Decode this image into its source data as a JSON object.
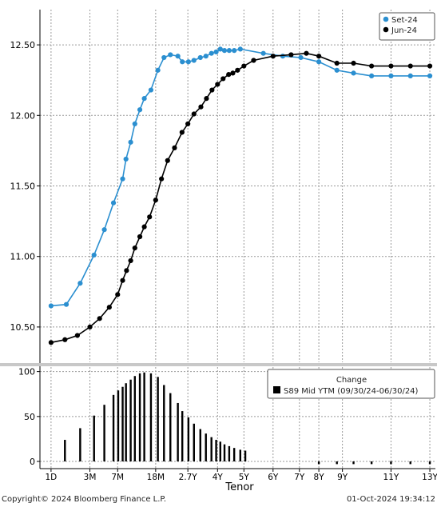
{
  "top_chart": {
    "type": "line",
    "yticks": [
      "12.50",
      "12.00",
      "11.50",
      "11.00",
      "10.50"
    ],
    "ylim": [
      10.25,
      12.75
    ],
    "legend_position": "top-right",
    "series": [
      {
        "name": "Set-24",
        "color": "#2b8fd0",
        "points": [
          [
            1,
            10.65
          ],
          [
            1.55,
            10.66
          ],
          [
            2.05,
            10.81
          ],
          [
            2.55,
            11.01
          ],
          [
            2.92,
            11.19
          ],
          [
            3.25,
            11.38
          ],
          [
            3.58,
            11.55
          ],
          [
            3.7,
            11.69
          ],
          [
            3.87,
            11.81
          ],
          [
            4.02,
            11.94
          ],
          [
            4.2,
            12.04
          ],
          [
            4.36,
            12.12
          ],
          [
            4.6,
            12.18
          ],
          [
            4.85,
            12.32
          ],
          [
            5.07,
            12.41
          ],
          [
            5.3,
            12.43
          ],
          [
            5.57,
            12.42
          ],
          [
            5.73,
            12.38
          ],
          [
            5.95,
            12.38
          ],
          [
            6.15,
            12.39
          ],
          [
            6.38,
            12.41
          ],
          [
            6.58,
            12.42
          ],
          [
            6.78,
            12.44
          ],
          [
            6.95,
            12.45
          ],
          [
            7.1,
            12.47
          ],
          [
            7.25,
            12.46
          ],
          [
            7.42,
            12.46
          ],
          [
            7.6,
            12.46
          ],
          [
            7.82,
            12.47
          ],
          [
            8.65,
            12.44
          ],
          [
            9.35,
            12.42
          ],
          [
            10.0,
            12.41
          ],
          [
            10.65,
            12.38
          ],
          [
            11.3,
            12.32
          ],
          [
            11.9,
            12.3
          ],
          [
            12.55,
            12.28
          ],
          [
            13.25,
            12.28
          ],
          [
            13.95,
            12.28
          ],
          [
            14.65,
            12.28
          ]
        ]
      },
      {
        "name": "Jun-24",
        "color": "#000000",
        "points": [
          [
            1,
            10.39
          ],
          [
            1.5,
            10.41
          ],
          [
            1.95,
            10.44
          ],
          [
            2.4,
            10.5
          ],
          [
            2.75,
            10.56
          ],
          [
            3.1,
            10.64
          ],
          [
            3.4,
            10.73
          ],
          [
            3.58,
            10.83
          ],
          [
            3.72,
            10.9
          ],
          [
            3.87,
            10.97
          ],
          [
            4.02,
            11.06
          ],
          [
            4.2,
            11.14
          ],
          [
            4.36,
            11.21
          ],
          [
            4.55,
            11.28
          ],
          [
            4.77,
            11.4
          ],
          [
            4.98,
            11.55
          ],
          [
            5.2,
            11.68
          ],
          [
            5.45,
            11.77
          ],
          [
            5.72,
            11.88
          ],
          [
            5.93,
            11.94
          ],
          [
            6.15,
            12.01
          ],
          [
            6.4,
            12.06
          ],
          [
            6.6,
            12.12
          ],
          [
            6.8,
            12.18
          ],
          [
            7.0,
            12.22
          ],
          [
            7.2,
            12.26
          ],
          [
            7.4,
            12.29
          ],
          [
            7.55,
            12.3
          ],
          [
            7.72,
            12.32
          ],
          [
            7.95,
            12.35
          ],
          [
            8.3,
            12.39
          ],
          [
            9.0,
            12.42
          ],
          [
            9.65,
            12.43
          ],
          [
            10.2,
            12.44
          ],
          [
            10.65,
            12.42
          ],
          [
            11.3,
            12.37
          ],
          [
            11.9,
            12.37
          ],
          [
            12.55,
            12.35
          ],
          [
            13.25,
            12.35
          ],
          [
            13.95,
            12.35
          ],
          [
            14.65,
            12.35
          ]
        ]
      }
    ]
  },
  "bottom_chart": {
    "type": "bar",
    "yticks": [
      "100",
      "50",
      "0"
    ],
    "ylim": [
      -8,
      105
    ],
    "legend_title": "Change",
    "legend_label": "S89 Mid YTM (09/30/24-06/30/24)",
    "bar_color": "#000000",
    "bars": [
      [
        1.5,
        24
      ],
      [
        2.05,
        37
      ],
      [
        2.55,
        51
      ],
      [
        2.92,
        63
      ],
      [
        3.25,
        74
      ],
      [
        3.42,
        79
      ],
      [
        3.58,
        83
      ],
      [
        3.7,
        87
      ],
      [
        3.87,
        91
      ],
      [
        4.02,
        95
      ],
      [
        4.2,
        98
      ],
      [
        4.36,
        99
      ],
      [
        4.6,
        98
      ],
      [
        4.85,
        94
      ],
      [
        5.07,
        85
      ],
      [
        5.3,
        76
      ],
      [
        5.57,
        65
      ],
      [
        5.73,
        56
      ],
      [
        5.95,
        49
      ],
      [
        6.15,
        42
      ],
      [
        6.38,
        36
      ],
      [
        6.58,
        31
      ],
      [
        6.78,
        27
      ],
      [
        6.95,
        24
      ],
      [
        7.1,
        22
      ],
      [
        7.25,
        19
      ],
      [
        7.42,
        17
      ],
      [
        7.6,
        15
      ],
      [
        7.82,
        13
      ],
      [
        8.0,
        12
      ],
      [
        10.65,
        -3
      ],
      [
        11.3,
        -3
      ],
      [
        11.9,
        -3
      ],
      [
        12.55,
        -3
      ],
      [
        13.25,
        -3
      ],
      [
        13.95,
        -3
      ],
      [
        14.65,
        -3
      ]
    ]
  },
  "x_axis": {
    "label": "Tenor",
    "xlim": [
      0.6,
      14.85
    ],
    "ticks": [
      {
        "pos": 1.0,
        "label": "1D"
      },
      {
        "pos": 2.4,
        "label": "3M"
      },
      {
        "pos": 3.4,
        "label": "7M"
      },
      {
        "pos": 4.77,
        "label": "18M"
      },
      {
        "pos": 5.93,
        "label": "2.7Y"
      },
      {
        "pos": 7.0,
        "label": "4Y"
      },
      {
        "pos": 7.95,
        "label": "5Y"
      },
      {
        "pos": 9.0,
        "label": "6Y"
      },
      {
        "pos": 9.95,
        "label": "7Y"
      },
      {
        "pos": 10.65,
        "label": "8Y"
      },
      {
        "pos": 11.5,
        "label": "9Y"
      },
      {
        "pos": 13.25,
        "label": "11Y"
      },
      {
        "pos": 14.65,
        "label": "13Y"
      }
    ]
  },
  "footer": {
    "copyright": "Copyright© 2024 Bloomberg Finance L.P.",
    "timestamp": "01-Oct-2024 19:34:12"
  },
  "colors": {
    "grid": "#9a9a9a",
    "separator": "#c8c8c8"
  }
}
